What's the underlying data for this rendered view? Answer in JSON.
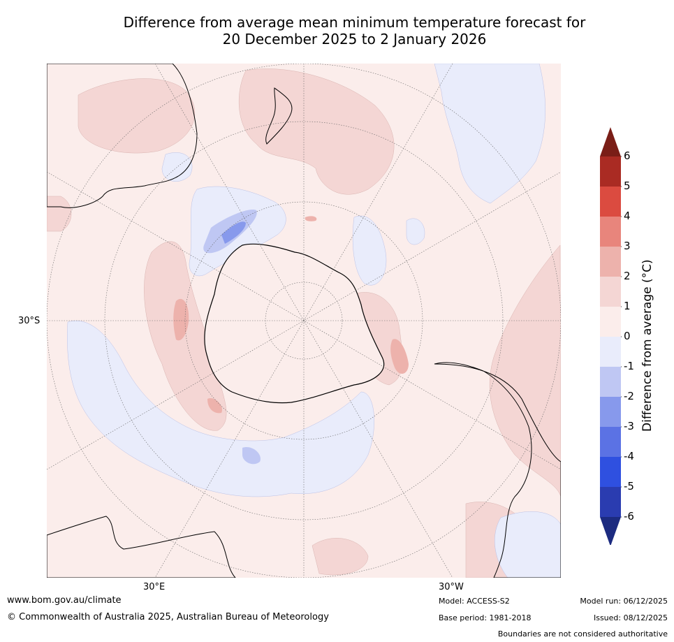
{
  "title": {
    "line1": "Difference from average mean minimum temperature forecast for",
    "line2": "20 December 2025 to 2 January 2026"
  },
  "axis_labels": {
    "lat_30s": "30°S",
    "lon_30e": "30°E",
    "lon_30w": "30°W"
  },
  "colorbar": {
    "label": "Difference from average (°C)",
    "ticks": [
      "6",
      "5",
      "4",
      "3",
      "2",
      "1",
      "0",
      "-1",
      "-2",
      "-3",
      "-4",
      "-5",
      "-6"
    ],
    "bands": [
      {
        "range": ">6",
        "color": "#7a1e17"
      },
      {
        "range": "5 to 6",
        "color": "#aa2b23"
      },
      {
        "range": "4 to 5",
        "color": "#db4b40"
      },
      {
        "range": "3 to 4",
        "color": "#e8857c"
      },
      {
        "range": "2 to 3",
        "color": "#edb2ac"
      },
      {
        "range": "1 to 2",
        "color": "#f4d6d4"
      },
      {
        "range": "0 to 1",
        "color": "#fbedeb"
      },
      {
        "range": "-1 to 0",
        "color": "#e9ecfb"
      },
      {
        "range": "-2 to -1",
        "color": "#bfc7f3"
      },
      {
        "range": "-3 to -2",
        "color": "#8799ec"
      },
      {
        "range": "-4 to -3",
        "color": "#5b72e4"
      },
      {
        "range": "-5 to -4",
        "color": "#2f50e0"
      },
      {
        "range": "-6 to -5",
        "color": "#2a3cb0"
      },
      {
        "range": "<-6",
        "color": "#1c2b80"
      }
    ]
  },
  "footer": {
    "website": "www.bom.gov.au/climate",
    "copyright": "© Commonwealth of Australia 2025, Australian Bureau of Meteorology",
    "model": "Model: ACCESS-S2",
    "base_period": "Base period: 1981-2018",
    "model_run": "Model run: 06/12/2025",
    "issued": "Issued: 08/12/2025",
    "disclaimer": "Boundaries are not considered authoritative"
  }
}
